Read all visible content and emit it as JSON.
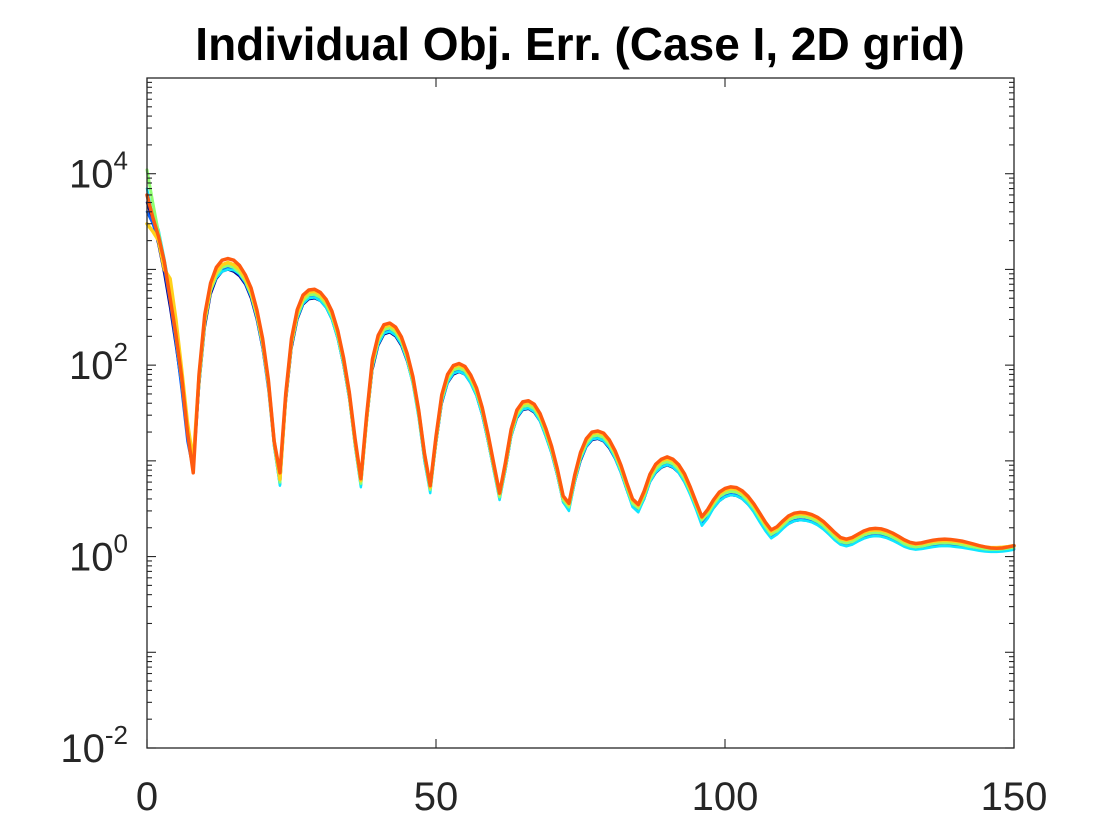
{
  "chart_data": {
    "type": "line",
    "title": "Individual Obj. Err. (Case I, 2D grid)",
    "xlabel": "",
    "ylabel": "",
    "xlim": [
      0,
      150
    ],
    "ylim": [
      0.01,
      100000
    ],
    "yscale": "log",
    "grid": false,
    "x_ticks": [
      {
        "value": 0,
        "label": "0"
      },
      {
        "value": 50,
        "label": "50"
      },
      {
        "value": 100,
        "label": "100"
      },
      {
        "value": 150,
        "label": "150"
      }
    ],
    "y_ticks": [
      {
        "value": 0.01,
        "base": "10",
        "exp": "-2"
      },
      {
        "value": 1,
        "base": "10",
        "exp": "0"
      },
      {
        "value": 100,
        "base": "10",
        "exp": "2"
      },
      {
        "value": 10000,
        "base": "10",
        "exp": "4"
      }
    ],
    "x": [
      0,
      1,
      2,
      3,
      4,
      5,
      6,
      7,
      8,
      9,
      10,
      11,
      12,
      13,
      14,
      15,
      16,
      17,
      18,
      19,
      20,
      21,
      22,
      23,
      24,
      25,
      26,
      27,
      28,
      29,
      30,
      31,
      32,
      33,
      34,
      35,
      36,
      37,
      38,
      39,
      40,
      41,
      42,
      43,
      44,
      45,
      46,
      47,
      48,
      49,
      50,
      51,
      52,
      53,
      54,
      55,
      56,
      57,
      58,
      59,
      60,
      61,
      62,
      63,
      64,
      65,
      66,
      67,
      68,
      69,
      70,
      71,
      72,
      73,
      74,
      75,
      76,
      77,
      78,
      79,
      80,
      81,
      82,
      83,
      84,
      85,
      86,
      87,
      88,
      89,
      90,
      91,
      92,
      93,
      94,
      95,
      96,
      97,
      98,
      99,
      100,
      101,
      102,
      103,
      104,
      105,
      106,
      107,
      108,
      109,
      110,
      111,
      112,
      113,
      114,
      115,
      116,
      117,
      118,
      119,
      120,
      121,
      122,
      123,
      124,
      125,
      126,
      127,
      128,
      129,
      130,
      131,
      132,
      133,
      134,
      135,
      136,
      137,
      138,
      139,
      140,
      141,
      142,
      143,
      144,
      145,
      146,
      147,
      148,
      149,
      150
    ],
    "series": [
      {
        "color": "#00008f",
        "width": 2.5,
        "values": [
          5000,
          3200,
          1800,
          900,
          400,
          160,
          60,
          18,
          8,
          60,
          250,
          550,
          800,
          950,
          1000,
          950,
          850,
          700,
          500,
          300,
          150,
          60,
          15,
          6,
          40,
          150,
          300,
          430,
          490,
          500,
          470,
          400,
          300,
          190,
          100,
          45,
          15,
          6,
          25,
          90,
          160,
          210,
          220,
          200,
          160,
          110,
          65,
          30,
          11,
          5,
          15,
          40,
          65,
          80,
          85,
          80,
          65,
          48,
          30,
          16,
          8,
          4.2,
          8,
          18,
          28,
          34,
          35,
          32,
          26,
          18,
          12,
          7,
          3.8,
          3.2,
          6,
          10,
          14,
          16.5,
          17,
          16,
          13.5,
          10.5,
          7.5,
          5,
          3.4,
          3,
          4,
          6,
          7.5,
          8.5,
          9,
          8.5,
          7.5,
          6,
          4.5,
          3.2,
          2.2,
          2.6,
          3.2,
          3.8,
          4.2,
          4.4,
          4.3,
          4,
          3.5,
          3,
          2.4,
          1.9,
          1.6,
          1.75,
          2.0,
          2.2,
          2.35,
          2.4,
          2.38,
          2.3,
          2.15,
          1.95,
          1.72,
          1.5,
          1.35,
          1.3,
          1.35,
          1.45,
          1.55,
          1.62,
          1.65,
          1.63,
          1.57,
          1.48,
          1.38,
          1.28,
          1.22,
          1.2,
          1.22,
          1.25,
          1.28,
          1.3,
          1.31,
          1.3,
          1.28,
          1.26,
          1.23,
          1.2,
          1.17,
          1.15,
          1.14,
          1.14,
          1.15,
          1.17,
          1.2
        ]
      },
      {
        "color": "#0a64ff",
        "width": 2.5,
        "values": [
          4000,
          3000,
          1900,
          1000,
          450,
          170,
          55,
          16,
          8,
          60,
          270,
          580,
          850,
          1000,
          1050,
          1000,
          880,
          720,
          520,
          310,
          150,
          55,
          14,
          5.6,
          42,
          160,
          320,
          450,
          510,
          520,
          480,
          410,
          310,
          195,
          100,
          44,
          14,
          5.5,
          25,
          95,
          170,
          220,
          230,
          210,
          170,
          115,
          65,
          29,
          10,
          4.8,
          15,
          42,
          68,
          84,
          88,
          82,
          67,
          49,
          31,
          16,
          8,
          4.0,
          8,
          18,
          29,
          35,
          36,
          33,
          26.5,
          18.5,
          12,
          7,
          3.7,
          3.1,
          6,
          10.5,
          14.5,
          17,
          17.5,
          16.5,
          14,
          10.8,
          7.6,
          5,
          3.4,
          3,
          4,
          6,
          7.7,
          8.7,
          9.2,
          8.7,
          7.6,
          6.1,
          4.5,
          3.2,
          2.2,
          2.6,
          3.3,
          3.9,
          4.3,
          4.5,
          4.4,
          4.1,
          3.6,
          3,
          2.4,
          1.9,
          1.6,
          1.75,
          2.0,
          2.25,
          2.4,
          2.45,
          2.42,
          2.33,
          2.18,
          1.97,
          1.73,
          1.5,
          1.35,
          1.3,
          1.35,
          1.46,
          1.57,
          1.64,
          1.67,
          1.65,
          1.59,
          1.5,
          1.39,
          1.29,
          1.22,
          1.2,
          1.22,
          1.25,
          1.29,
          1.31,
          1.32,
          1.31,
          1.29,
          1.26,
          1.23,
          1.2,
          1.17,
          1.15,
          1.14,
          1.14,
          1.15,
          1.17,
          1.2
        ]
      },
      {
        "color": "#0fe6ff",
        "width": 2.5,
        "values": [
          7000,
          3500,
          2600,
          1300,
          600,
          250,
          80,
          22,
          9,
          70,
          300,
          600,
          820,
          950,
          1000,
          980,
          900,
          740,
          530,
          320,
          160,
          60,
          14,
          5.5,
          45,
          160,
          310,
          440,
          500,
          510,
          470,
          400,
          300,
          190,
          100,
          44,
          14,
          5.3,
          25,
          95,
          165,
          215,
          225,
          205,
          165,
          112,
          63,
          28,
          10,
          4.6,
          15,
          41,
          66,
          82,
          86,
          80,
          65,
          48,
          30,
          16,
          7.8,
          3.9,
          8,
          18,
          28.5,
          34.5,
          35.5,
          32.5,
          26,
          18,
          12,
          7,
          3.7,
          3.0,
          6,
          10.3,
          14.2,
          16.8,
          17.2,
          16.2,
          13.8,
          10.6,
          7.5,
          5,
          3.3,
          2.9,
          4,
          6,
          7.6,
          8.6,
          9.1,
          8.6,
          7.5,
          6,
          4.4,
          3.1,
          2.1,
          2.5,
          3.2,
          3.8,
          4.2,
          4.4,
          4.3,
          4,
          3.5,
          2.9,
          2.3,
          1.85,
          1.55,
          1.7,
          1.95,
          2.2,
          2.35,
          2.4,
          2.37,
          2.28,
          2.13,
          1.93,
          1.7,
          1.48,
          1.33,
          1.28,
          1.33,
          1.44,
          1.54,
          1.61,
          1.64,
          1.62,
          1.56,
          1.47,
          1.37,
          1.27,
          1.21,
          1.18,
          1.2,
          1.23,
          1.26,
          1.28,
          1.29,
          1.28,
          1.26,
          1.24,
          1.21,
          1.18,
          1.15,
          1.13,
          1.12,
          1.12,
          1.13,
          1.15,
          1.18
        ]
      },
      {
        "color": "#8fff70",
        "width": 3,
        "values": [
          11000,
          5000,
          2400,
          1200,
          520,
          200,
          70,
          20,
          9,
          65,
          280,
          600,
          880,
          1050,
          1100,
          1050,
          930,
          760,
          550,
          330,
          165,
          62,
          15,
          6,
          44,
          165,
          330,
          470,
          540,
          550,
          510,
          430,
          325,
          205,
          108,
          47,
          15,
          5.8,
          26,
          100,
          180,
          235,
          245,
          222,
          178,
          120,
          68,
          31,
          11,
          5.0,
          16,
          44,
          72,
          89,
          93,
          87,
          71,
          52,
          33,
          17,
          8.4,
          4.2,
          8.5,
          19,
          30.5,
          37,
          38,
          35,
          28,
          19.5,
          12.8,
          7.4,
          3.9,
          3.3,
          6.4,
          11,
          15.3,
          18,
          18.5,
          17.5,
          14.8,
          11.4,
          8.1,
          5.3,
          3.6,
          3.2,
          4.3,
          6.4,
          8.2,
          9.3,
          9.8,
          9.3,
          8.1,
          6.5,
          4.8,
          3.4,
          2.4,
          2.8,
          3.5,
          4.2,
          4.6,
          4.8,
          4.7,
          4.35,
          3.8,
          3.2,
          2.55,
          2.05,
          1.7,
          1.85,
          2.12,
          2.4,
          2.56,
          2.62,
          2.58,
          2.48,
          2.32,
          2.1,
          1.84,
          1.6,
          1.43,
          1.38,
          1.43,
          1.55,
          1.67,
          1.75,
          1.78,
          1.76,
          1.69,
          1.59,
          1.48,
          1.36,
          1.29,
          1.26,
          1.28,
          1.32,
          1.36,
          1.38,
          1.39,
          1.38,
          1.36,
          1.33,
          1.29,
          1.26,
          1.23,
          1.2,
          1.19,
          1.19,
          1.2,
          1.22,
          1.25
        ]
      },
      {
        "color": "#ffd21a",
        "width": 3.5,
        "values": [
          3000,
          2500,
          2000,
          1000,
          800,
          300,
          90,
          25,
          10,
          75,
          310,
          650,
          950,
          1120,
          1180,
          1120,
          1000,
          810,
          590,
          355,
          178,
          66,
          16,
          6.4,
          47,
          178,
          355,
          505,
          580,
          590,
          545,
          462,
          350,
          220,
          116,
          50,
          16,
          6.2,
          28,
          108,
          193,
          252,
          262,
          238,
          190,
          128,
          73,
          33,
          11.8,
          5.3,
          17,
          47,
          77,
          95,
          100,
          93,
          76,
          56,
          35,
          18.3,
          9,
          4.5,
          9.1,
          20.5,
          32.7,
          39.7,
          40.8,
          37.5,
          30,
          21,
          13.7,
          7.9,
          4.2,
          3.5,
          6.9,
          11.8,
          16.4,
          19.3,
          19.8,
          18.8,
          15.9,
          12.2,
          8.7,
          5.7,
          3.9,
          3.4,
          4.6,
          6.9,
          8.8,
          10,
          10.5,
          10,
          8.7,
          7,
          5.1,
          3.6,
          2.55,
          3.0,
          3.75,
          4.5,
          4.95,
          5.15,
          5.05,
          4.65,
          4.1,
          3.4,
          2.75,
          2.2,
          1.83,
          1.98,
          2.27,
          2.57,
          2.74,
          2.8,
          2.76,
          2.66,
          2.48,
          2.25,
          1.97,
          1.72,
          1.53,
          1.48,
          1.53,
          1.66,
          1.79,
          1.87,
          1.9,
          1.88,
          1.81,
          1.7,
          1.58,
          1.46,
          1.38,
          1.34,
          1.36,
          1.4,
          1.44,
          1.46,
          1.47,
          1.46,
          1.44,
          1.41,
          1.37,
          1.33,
          1.29,
          1.26,
          1.24,
          1.24,
          1.25,
          1.27,
          1.3
        ]
      },
      {
        "color": "#ff5a0f",
        "width": 3.5,
        "values": [
          6000,
          3500,
          2200,
          1200,
          500,
          210,
          75,
          20,
          7.5,
          80,
          340,
          720,
          1050,
          1250,
          1300,
          1250,
          1100,
          880,
          640,
          380,
          190,
          70,
          16,
          7.5,
          50,
          190,
          380,
          540,
          610,
          620,
          575,
          485,
          365,
          230,
          120,
          52,
          17,
          6.5,
          30,
          115,
          205,
          265,
          275,
          250,
          198,
          133,
          76,
          34,
          12,
          5.5,
          18,
          49,
          80,
          99,
          104,
          97,
          79,
          58,
          36,
          19,
          9.3,
          4.6,
          9.5,
          21.3,
          34,
          41.3,
          42.5,
          39,
          31.2,
          21.8,
          14.2,
          8.2,
          4.3,
          3.6,
          7.1,
          12.2,
          17,
          20,
          20.5,
          19.5,
          16.5,
          12.7,
          9,
          5.9,
          4.0,
          3.5,
          4.8,
          7.2,
          9.2,
          10.4,
          11,
          10.4,
          9.1,
          7.3,
          5.3,
          3.7,
          2.6,
          3.1,
          3.9,
          4.7,
          5.15,
          5.35,
          5.25,
          4.85,
          4.25,
          3.55,
          2.85,
          2.28,
          1.9,
          2.05,
          2.35,
          2.66,
          2.84,
          2.9,
          2.86,
          2.75,
          2.57,
          2.33,
          2.04,
          1.78,
          1.58,
          1.52,
          1.58,
          1.71,
          1.85,
          1.94,
          1.97,
          1.95,
          1.87,
          1.76,
          1.63,
          1.5,
          1.41,
          1.37,
          1.39,
          1.44,
          1.48,
          1.51,
          1.52,
          1.51,
          1.48,
          1.45,
          1.4,
          1.35,
          1.3,
          1.26,
          1.23,
          1.22,
          1.23,
          1.26,
          1.3
        ]
      }
    ]
  }
}
